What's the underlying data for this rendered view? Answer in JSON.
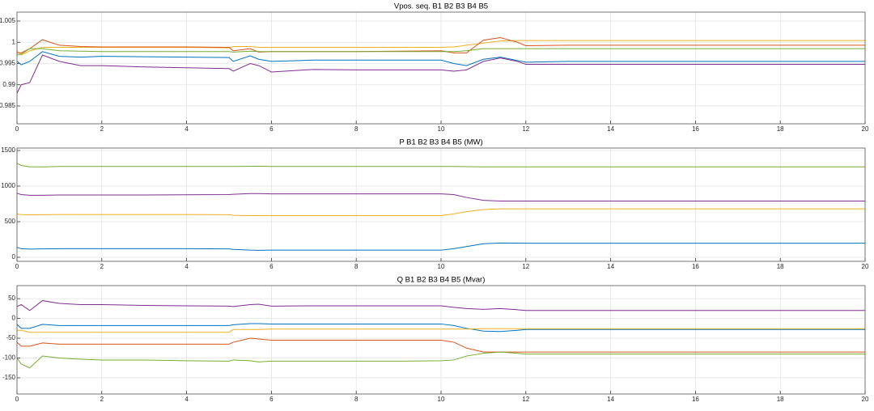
{
  "chart_data": [
    {
      "type": "line",
      "title": "Vpos. seq. B1 B2 B3 B4 B5",
      "x": [
        0,
        0.1,
        0.3,
        0.6,
        1,
        1.5,
        2,
        3,
        4,
        5,
        5.1,
        5.5,
        5.7,
        6,
        7,
        8,
        9,
        10,
        10.3,
        10.6,
        11,
        11.4,
        11.8,
        12,
        13,
        14,
        16,
        18,
        20
      ],
      "xlim": [
        0,
        20
      ],
      "xticks": [
        0,
        2,
        4,
        6,
        8,
        10,
        12,
        14,
        16,
        18,
        20
      ],
      "ylim": [
        0.9808,
        1.0071
      ],
      "yticks": [
        0.985,
        0.99,
        0.995,
        1,
        1.005
      ],
      "grid": true,
      "series": [
        {
          "color": "#EDB120",
          "values": [
            0.998,
            0.997,
            0.998,
            0.9988,
            0.9988,
            0.9988,
            0.9988,
            0.9988,
            0.9988,
            0.9987,
            0.999,
            0.999,
            0.9988,
            0.9988,
            0.9988,
            0.9988,
            0.9988,
            0.9988,
            0.9989,
            0.9993,
            0.9998,
            1.0003,
            1.0004,
            1.0004,
            1.0004,
            1.0004,
            1.0004,
            1.0004,
            1.0004
          ]
        },
        {
          "color": "#D95319",
          "values": [
            0.9975,
            0.9975,
            0.9985,
            1.0006,
            0.9993,
            0.999,
            0.9989,
            0.9989,
            0.9989,
            0.9988,
            0.998,
            0.9985,
            0.9977,
            0.9978,
            0.9978,
            0.9978,
            0.9979,
            0.998,
            0.9975,
            0.9975,
            1.0005,
            1.0011,
            1.0,
            0.9992,
            0.9993,
            0.9993,
            0.9993,
            0.9993,
            0.9993
          ]
        },
        {
          "color": "#77AC30",
          "values": [
            0.997,
            0.9972,
            0.9985,
            0.9985,
            0.998,
            0.9979,
            0.9978,
            0.9978,
            0.9978,
            0.9978,
            0.9977,
            0.9979,
            0.9978,
            0.9978,
            0.9978,
            0.9978,
            0.9978,
            0.9978,
            0.9978,
            0.998,
            0.9985,
            0.9985,
            0.9985,
            0.9985,
            0.9985,
            0.9985,
            0.9985,
            0.9985,
            0.9985
          ]
        },
        {
          "color": "#0072BD",
          "values": [
            0.9955,
            0.9947,
            0.9955,
            0.9978,
            0.9967,
            0.9965,
            0.9967,
            0.9966,
            0.9965,
            0.9964,
            0.9955,
            0.9968,
            0.996,
            0.9955,
            0.9958,
            0.9958,
            0.9958,
            0.9958,
            0.995,
            0.9945,
            0.996,
            0.9965,
            0.9957,
            0.9953,
            0.9955,
            0.9955,
            0.9955,
            0.9955,
            0.9955
          ]
        },
        {
          "color": "#7E2F8E",
          "values": [
            0.988,
            0.99,
            0.9905,
            0.997,
            0.9955,
            0.9945,
            0.9945,
            0.9942,
            0.994,
            0.9938,
            0.9932,
            0.995,
            0.9945,
            0.993,
            0.9936,
            0.9935,
            0.9935,
            0.9935,
            0.9932,
            0.9935,
            0.9955,
            0.9963,
            0.9955,
            0.9948,
            0.9948,
            0.9948,
            0.9948,
            0.9948,
            0.9948
          ]
        }
      ]
    },
    {
      "type": "line",
      "title": "P B1 B2 B3 B4 B5 (MW)",
      "x": [
        0,
        0.1,
        0.3,
        0.6,
        1,
        1.5,
        2,
        3,
        4,
        5,
        5.1,
        5.5,
        5.7,
        6,
        7,
        8,
        9,
        10,
        10.3,
        10.6,
        11,
        11.4,
        11.8,
        12,
        13,
        14,
        16,
        18,
        20
      ],
      "xlim": [
        0,
        20
      ],
      "xticks": [
        0,
        2,
        4,
        6,
        8,
        10,
        12,
        14,
        16,
        18,
        20
      ],
      "ylim": [
        -57,
        1534
      ],
      "yticks": [
        0,
        500,
        1000,
        1500
      ],
      "grid": true,
      "series": [
        {
          "color": "#77AC30",
          "values": [
            1320,
            1290,
            1270,
            1270,
            1275,
            1275,
            1275,
            1275,
            1275,
            1275,
            1275,
            1278,
            1280,
            1275,
            1275,
            1275,
            1275,
            1275,
            1275,
            1273,
            1270,
            1270,
            1270,
            1270,
            1270,
            1270,
            1270,
            1270,
            1270
          ]
        },
        {
          "color": "#7E2F8E",
          "values": [
            900,
            880,
            870,
            870,
            875,
            875,
            875,
            875,
            878,
            880,
            885,
            895,
            895,
            890,
            890,
            890,
            890,
            890,
            880,
            840,
            800,
            790,
            790,
            790,
            790,
            790,
            790,
            790,
            790
          ]
        },
        {
          "color": "#EDB120",
          "values": [
            610,
            600,
            595,
            598,
            600,
            600,
            600,
            600,
            600,
            598,
            590,
            585,
            585,
            585,
            585,
            585,
            585,
            585,
            610,
            640,
            670,
            680,
            680,
            680,
            680,
            680,
            680,
            680,
            680
          ]
        },
        {
          "color": "#0072BD",
          "values": [
            140,
            120,
            115,
            118,
            120,
            120,
            120,
            120,
            120,
            118,
            110,
            100,
            98,
            100,
            100,
            100,
            100,
            100,
            120,
            150,
            190,
            200,
            198,
            197,
            197,
            197,
            197,
            197,
            197
          ]
        }
      ]
    },
    {
      "type": "line",
      "title": "Q B1 B2 B3 B4 B5 (Mvar)",
      "x": [
        0,
        0.1,
        0.3,
        0.6,
        1,
        1.5,
        2,
        3,
        4,
        5,
        5.1,
        5.5,
        5.7,
        6,
        7,
        8,
        9,
        10,
        10.3,
        10.6,
        11,
        11.4,
        11.8,
        12,
        13,
        14,
        16,
        18,
        20
      ],
      "xlim": [
        0,
        20
      ],
      "xticks": [
        0,
        2,
        4,
        6,
        8,
        10,
        12,
        14,
        16,
        18,
        20
      ],
      "ylim": [
        -191,
        83
      ],
      "yticks": [
        -150,
        -100,
        -50,
        0,
        50
      ],
      "grid": true,
      "series": [
        {
          "color": "#7E2F8E",
          "values": [
            30,
            35,
            20,
            45,
            38,
            35,
            35,
            33,
            32,
            31,
            30,
            35,
            36,
            31,
            32,
            32,
            32,
            32,
            28,
            25,
            23,
            25,
            22,
            20,
            20,
            20,
            20,
            20,
            20
          ]
        },
        {
          "color": "#0072BD",
          "values": [
            -15,
            -25,
            -25,
            -15,
            -18,
            -18,
            -18,
            -18,
            -18,
            -18,
            -16,
            -13,
            -13,
            -14,
            -14,
            -14,
            -14,
            -14,
            -18,
            -25,
            -32,
            -33,
            -30,
            -28,
            -28,
            -28,
            -28,
            -28,
            -28
          ]
        },
        {
          "color": "#EDB120",
          "values": [
            -30,
            -30,
            -35,
            -35,
            -35,
            -35,
            -35,
            -35,
            -35,
            -35,
            -28,
            -28,
            -28,
            -27,
            -27,
            -27,
            -27,
            -27,
            -27,
            -27,
            -26,
            -26,
            -26,
            -26,
            -26,
            -26,
            -26,
            -26,
            -26
          ]
        },
        {
          "color": "#D95319",
          "values": [
            -60,
            -70,
            -70,
            -62,
            -65,
            -65,
            -65,
            -65,
            -65,
            -65,
            -60,
            -50,
            -52,
            -55,
            -55,
            -55,
            -55,
            -55,
            -60,
            -75,
            -85,
            -85,
            -85,
            -85,
            -85,
            -85,
            -85,
            -85,
            -85
          ]
        },
        {
          "color": "#77AC30",
          "values": [
            -100,
            -115,
            -125,
            -95,
            -100,
            -103,
            -105,
            -105,
            -107,
            -108,
            -105,
            -107,
            -110,
            -108,
            -108,
            -108,
            -108,
            -107,
            -105,
            -95,
            -88,
            -85,
            -88,
            -90,
            -90,
            -90,
            -90,
            -90,
            -90
          ]
        }
      ]
    }
  ]
}
